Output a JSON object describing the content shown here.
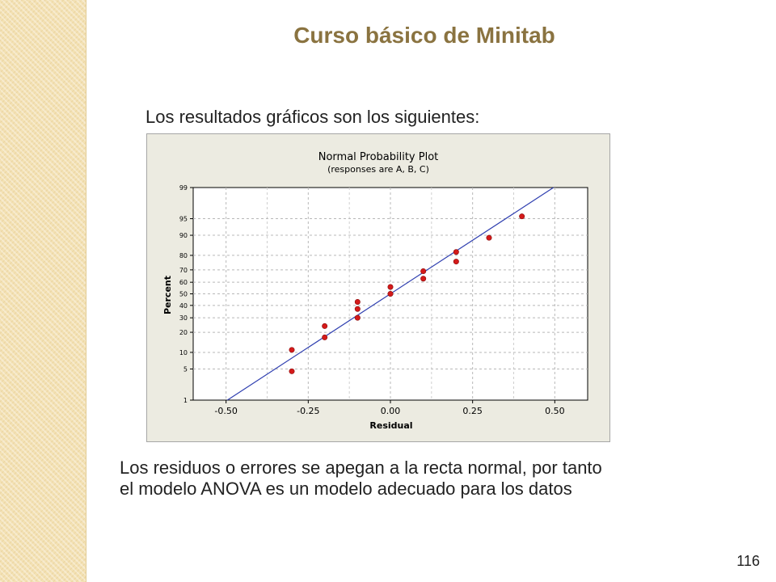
{
  "slide": {
    "title": "Curso básico de Minitab",
    "intro": "Los resultados gráficos son los siguientes:",
    "conclusion_line1": "Los residuos o errores se apegan a la recta normal, por tanto",
    "conclusion_line2": "el modelo ANOVA es un modelo adecuado para los datos",
    "page_number": "116"
  },
  "chart_data": {
    "type": "scatter",
    "title": "Normal Probability Plot",
    "subtitle": "(responses are A, B, C)",
    "xlabel": "Residual",
    "ylabel": "Percent",
    "xlim": [
      -0.6,
      0.6
    ],
    "x_ticks": [
      -0.5,
      -0.25,
      0,
      0.25,
      0.5
    ],
    "x_tick_labels": [
      "-0.50",
      "-0.25",
      "0.00",
      "0.25",
      "0.50"
    ],
    "y_scale": "normal-probability",
    "y_ticks": [
      1,
      5,
      10,
      20,
      30,
      40,
      50,
      60,
      70,
      80,
      90,
      95,
      99
    ],
    "ylim": [
      1,
      99
    ],
    "grid": true,
    "series": [
      {
        "points": [
          {
            "x": -0.3,
            "y": 4.5
          },
          {
            "x": -0.3,
            "y": 11
          },
          {
            "x": -0.2,
            "y": 17
          },
          {
            "x": -0.2,
            "y": 24
          },
          {
            "x": -0.1,
            "y": 30
          },
          {
            "x": -0.1,
            "y": 37
          },
          {
            "x": -0.1,
            "y": 43
          },
          {
            "x": 0.0,
            "y": 50
          },
          {
            "x": 0.0,
            "y": 56
          },
          {
            "x": 0.1,
            "y": 63
          },
          {
            "x": 0.1,
            "y": 69
          },
          {
            "x": 0.2,
            "y": 76
          },
          {
            "x": 0.2,
            "y": 82
          },
          {
            "x": 0.3,
            "y": 89
          },
          {
            "x": 0.4,
            "y": 95.5
          }
        ]
      }
    ],
    "fit_line": {
      "x_start": -0.496,
      "y_start": 1,
      "x_end": 0.496,
      "y_end": 99
    },
    "colors": {
      "points": "#d41a1a",
      "fit_line": "#2f3fb0",
      "background": "#ecebe1",
      "plot_area": "#ffffff"
    }
  }
}
